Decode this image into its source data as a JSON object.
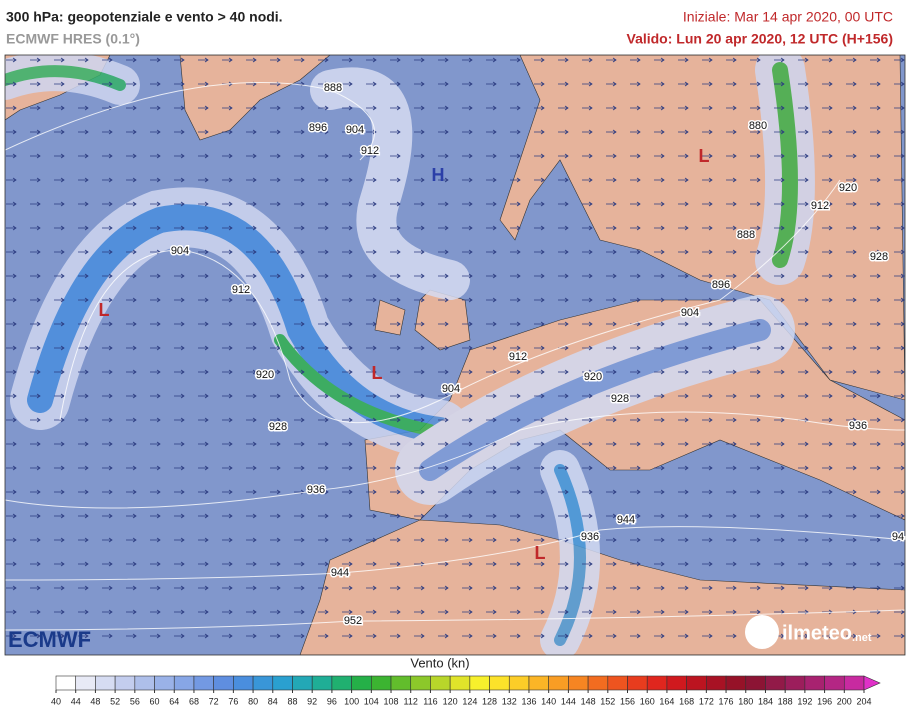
{
  "header": {
    "title": "300 hPa: geopotenziale e vento > 40 nodi.",
    "model": "ECMWF HRES (0.1°)",
    "init": "Iniziale: Mar 14 apr 2020, 00 UTC",
    "valid": "Valido: Lun 20 apr 2020, 12 UTC (H+156)"
  },
  "map": {
    "contour_labels": [
      "888",
      "896",
      "904",
      "912",
      "904",
      "912",
      "920",
      "928",
      "936",
      "944",
      "952",
      "904",
      "912",
      "920",
      "928",
      "904",
      "896",
      "888",
      "880",
      "912",
      "920",
      "928",
      "936",
      "944",
      "936",
      "94"
    ],
    "pressure_centers": [
      {
        "label": "H",
        "color": "#2b3fa8"
      },
      {
        "label": "L",
        "color": "#c0282a"
      },
      {
        "label": "L",
        "color": "#c0282a"
      },
      {
        "label": "L",
        "color": "#c0282a"
      },
      {
        "label": "L",
        "color": "#c0282a"
      }
    ]
  },
  "colorbar": {
    "title": "Vento (kn)",
    "ticks": [
      40,
      44,
      48,
      52,
      56,
      60,
      64,
      68,
      72,
      76,
      80,
      84,
      88,
      92,
      96,
      100,
      104,
      108,
      112,
      116,
      120,
      124,
      128,
      132,
      136,
      140,
      144,
      148,
      152,
      156,
      160,
      164,
      168,
      172,
      176,
      180,
      184,
      188,
      192,
      196,
      200,
      204
    ],
    "colors": [
      "#ffffff",
      "#e8eaf6",
      "#d6dcf2",
      "#c3cdee",
      "#aebfea",
      "#9ab2e8",
      "#87a6e6",
      "#7399e3",
      "#5f8ee0",
      "#4a8ede",
      "#3996d8",
      "#2aa0d0",
      "#23a8b6",
      "#1fae96",
      "#20b070",
      "#25b048",
      "#3cb431",
      "#62bd2c",
      "#8cc82a",
      "#b8d62a",
      "#e0e42a",
      "#f7f02c",
      "#fce22a",
      "#fccd28",
      "#fbb526",
      "#f99d24",
      "#f68522",
      "#f26c20",
      "#ee541f",
      "#e83c1e",
      "#e0261e",
      "#d0191e",
      "#bc1420",
      "#a81224",
      "#961228",
      "#8c1434",
      "#921a48",
      "#9c1e5c",
      "#a82270",
      "#b42684",
      "#c82aa0",
      "#e030c8"
    ]
  },
  "logos": {
    "left": "ECMWF",
    "right": "ilmeteo",
    "right_suffix": ".net"
  }
}
